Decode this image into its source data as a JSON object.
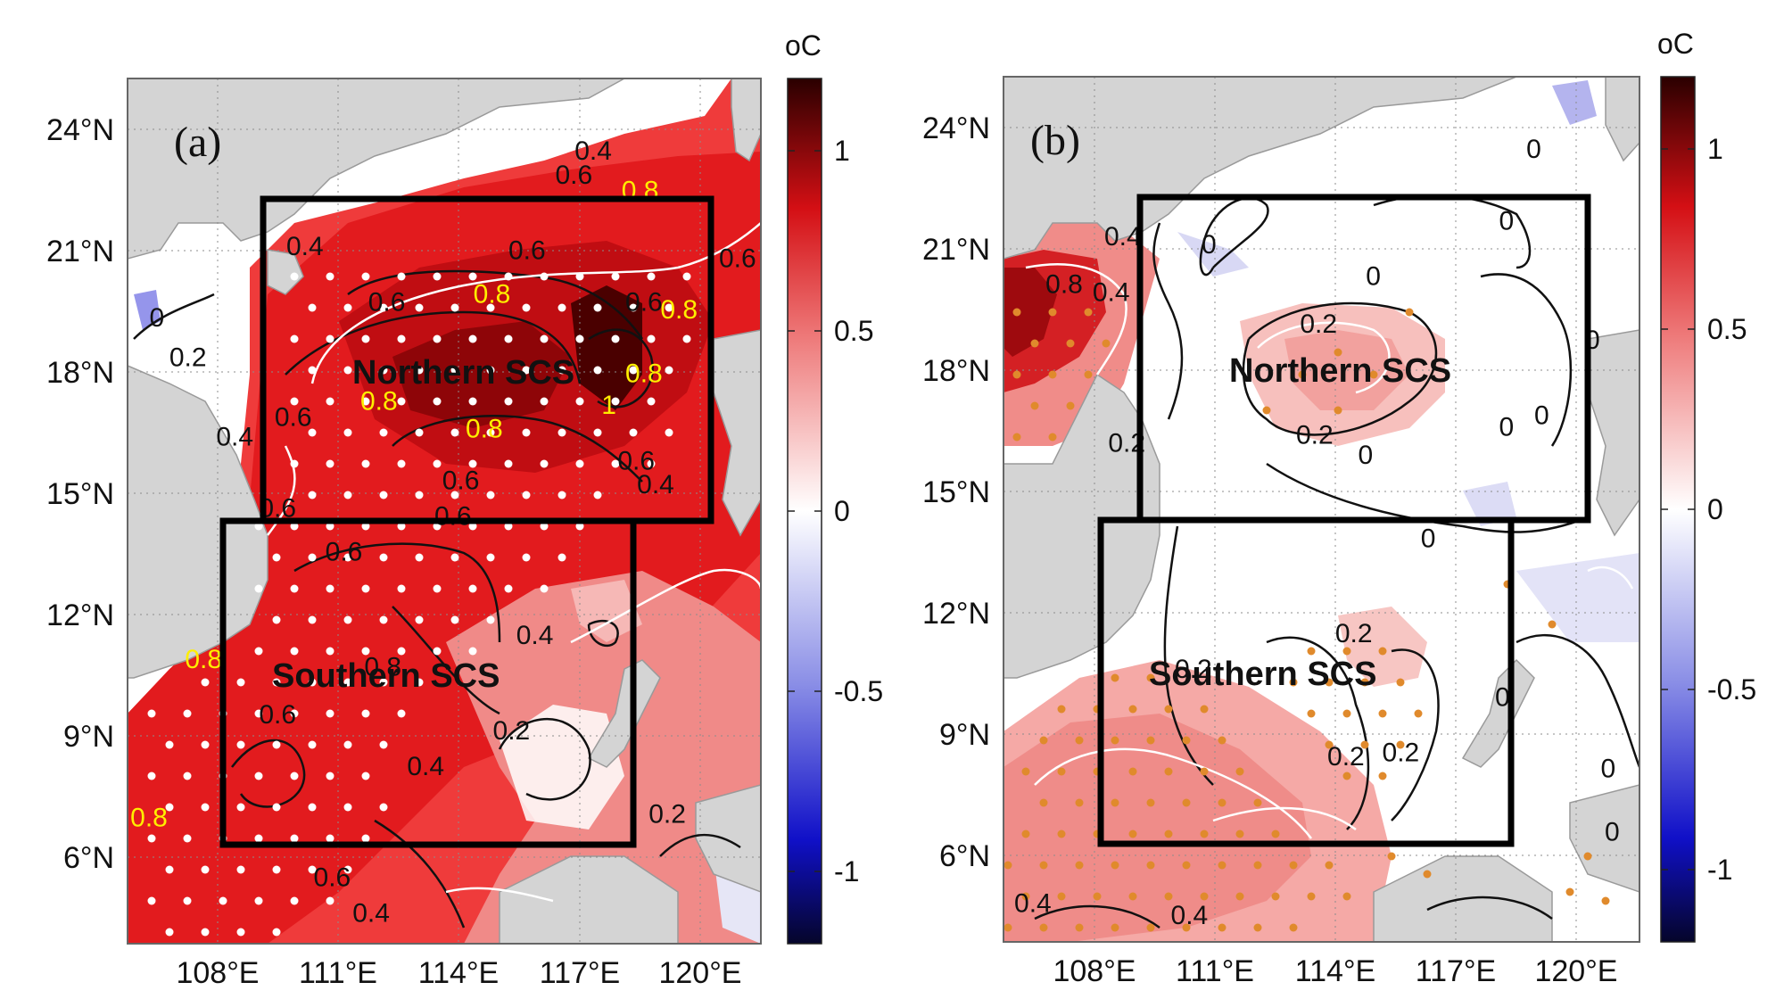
{
  "figure": {
    "unit_label": "oC",
    "colorbar_ticks": [
      "1",
      "0.5",
      "0",
      "-0.5",
      "-1"
    ],
    "colorbar_range": [
      -1.2,
      1.2
    ],
    "lat_ticks": [
      "24°N",
      "21°N",
      "18°N",
      "15°N",
      "12°N",
      "9°N",
      "6°N"
    ],
    "lon_ticks": [
      "108°E",
      "111°E",
      "114°E",
      "117°E",
      "120°E"
    ],
    "colors": {
      "positive_dark": "#4a0000",
      "positive": "#e8161b",
      "neutral": "#ffffff",
      "negative": "#1010c8",
      "land": "#d4d4d4",
      "box": "#000000",
      "highlight_label": "#ffee00",
      "stipple_a": "#ffffff",
      "stipple_b": "#e08a2c"
    }
  },
  "panels": [
    {
      "label": "(a)",
      "regions": [
        "Northern SCS",
        "Southern SCS"
      ],
      "contour_labels": [
        {
          "text": "0.4",
          "lon": 117.7,
          "lat": 23.2,
          "style": "black"
        },
        {
          "text": "0.6",
          "lon": 117.2,
          "lat": 22.6,
          "style": "black"
        },
        {
          "text": "0.8",
          "lon": 118.9,
          "lat": 22.2,
          "style": "yellow"
        },
        {
          "text": "0.4",
          "lon": 110.3,
          "lat": 20.8,
          "style": "black"
        },
        {
          "text": "0.6",
          "lon": 116.0,
          "lat": 20.7,
          "style": "black"
        },
        {
          "text": "0.6",
          "lon": 121.4,
          "lat": 20.5,
          "style": "black"
        },
        {
          "text": "0.8",
          "lon": 115.1,
          "lat": 19.6,
          "style": "yellow"
        },
        {
          "text": "0.6",
          "lon": 112.4,
          "lat": 19.4,
          "style": "black"
        },
        {
          "text": "0.6",
          "lon": 119.0,
          "lat": 19.4,
          "style": "black"
        },
        {
          "text": "0.8",
          "lon": 119.9,
          "lat": 19.2,
          "style": "yellow"
        },
        {
          "text": "0",
          "lon": 106.5,
          "lat": 19.0,
          "style": "black"
        },
        {
          "text": "0.2",
          "lon": 107.3,
          "lat": 18.0,
          "style": "black"
        },
        {
          "text": "0.8",
          "lon": 119.0,
          "lat": 17.6,
          "style": "yellow"
        },
        {
          "text": "0.8",
          "lon": 112.2,
          "lat": 16.9,
          "style": "yellow"
        },
        {
          "text": "1",
          "lon": 118.1,
          "lat": 16.8,
          "style": "yellow"
        },
        {
          "text": "0.6",
          "lon": 110.0,
          "lat": 16.5,
          "style": "black"
        },
        {
          "text": "0.8",
          "lon": 114.9,
          "lat": 16.2,
          "style": "yellow"
        },
        {
          "text": "0.4",
          "lon": 108.5,
          "lat": 16.0,
          "style": "black"
        },
        {
          "text": "0.6",
          "lon": 118.8,
          "lat": 15.4,
          "style": "black"
        },
        {
          "text": "0.6",
          "lon": 114.3,
          "lat": 14.9,
          "style": "black"
        },
        {
          "text": "0.4",
          "lon": 119.3,
          "lat": 14.8,
          "style": "black"
        },
        {
          "text": "0.6",
          "lon": 109.6,
          "lat": 14.2,
          "style": "black"
        },
        {
          "text": "0.6",
          "lon": 114.1,
          "lat": 14.0,
          "style": "black"
        },
        {
          "text": "0.6",
          "lon": 111.3,
          "lat": 13.1,
          "style": "black"
        },
        {
          "text": "0.8",
          "lon": 107.7,
          "lat": 10.4,
          "style": "yellow"
        },
        {
          "text": "0.4",
          "lon": 116.2,
          "lat": 11.0,
          "style": "black"
        },
        {
          "text": "0.8",
          "lon": 112.3,
          "lat": 10.2,
          "style": "black"
        },
        {
          "text": "0.6",
          "lon": 109.6,
          "lat": 9.0,
          "style": "black"
        },
        {
          "text": "0.2",
          "lon": 115.6,
          "lat": 8.6,
          "style": "black"
        },
        {
          "text": "0.4",
          "lon": 113.4,
          "lat": 7.7,
          "style": "black"
        },
        {
          "text": "0.8",
          "lon": 106.3,
          "lat": 6.4,
          "style": "yellow"
        },
        {
          "text": "0.2",
          "lon": 119.6,
          "lat": 6.5,
          "style": "black"
        },
        {
          "text": "0.6",
          "lon": 111.0,
          "lat": 4.9,
          "style": "black"
        },
        {
          "text": "0.4",
          "lon": 112.0,
          "lat": 4.0,
          "style": "black"
        }
      ]
    },
    {
      "label": "(b)",
      "regions": [
        "Northern SCS",
        "Southern SCS"
      ],
      "contour_labels": [
        {
          "text": "0",
          "lon": 119.3,
          "lat": 23.2,
          "style": "black"
        },
        {
          "text": "0.4",
          "lon": 108.8,
          "lat": 21.0,
          "style": "black"
        },
        {
          "text": "0",
          "lon": 118.6,
          "lat": 21.4,
          "style": "black"
        },
        {
          "text": "0",
          "lon": 111.0,
          "lat": 20.8,
          "style": "black"
        },
        {
          "text": "0",
          "lon": 115.2,
          "lat": 20.0,
          "style": "black"
        },
        {
          "text": "0.8",
          "lon": 107.3,
          "lat": 19.8,
          "style": "black"
        },
        {
          "text": "0.4",
          "lon": 108.5,
          "lat": 19.6,
          "style": "black"
        },
        {
          "text": "0.2",
          "lon": 113.8,
          "lat": 18.8,
          "style": "black"
        },
        {
          "text": "0",
          "lon": 120.8,
          "lat": 18.4,
          "style": "black"
        },
        {
          "text": "0.2",
          "lon": 113.7,
          "lat": 16.0,
          "style": "black"
        },
        {
          "text": "0",
          "lon": 118.6,
          "lat": 16.2,
          "style": "black"
        },
        {
          "text": "0",
          "lon": 119.5,
          "lat": 16.5,
          "style": "black"
        },
        {
          "text": "0.2",
          "lon": 108.9,
          "lat": 15.8,
          "style": "black"
        },
        {
          "text": "0",
          "lon": 115.0,
          "lat": 15.5,
          "style": "black"
        },
        {
          "text": "0",
          "lon": 116.6,
          "lat": 13.4,
          "style": "black"
        },
        {
          "text": "0.2",
          "lon": 114.7,
          "lat": 11.0,
          "style": "black"
        },
        {
          "text": "0.2",
          "lon": 110.6,
          "lat": 10.1,
          "style": "black"
        },
        {
          "text": "0",
          "lon": 118.5,
          "lat": 9.4,
          "style": "black"
        },
        {
          "text": "0.2",
          "lon": 114.5,
          "lat": 7.9,
          "style": "black"
        },
        {
          "text": "0.2",
          "lon": 115.9,
          "lat": 8.0,
          "style": "black"
        },
        {
          "text": "0",
          "lon": 121.2,
          "lat": 7.6,
          "style": "black"
        },
        {
          "text": "0",
          "lon": 121.3,
          "lat": 6.0,
          "style": "black"
        },
        {
          "text": "0.4",
          "lon": 106.5,
          "lat": 4.2,
          "style": "black"
        },
        {
          "text": "0.4",
          "lon": 110.5,
          "lat": 3.9,
          "style": "black"
        }
      ]
    }
  ]
}
